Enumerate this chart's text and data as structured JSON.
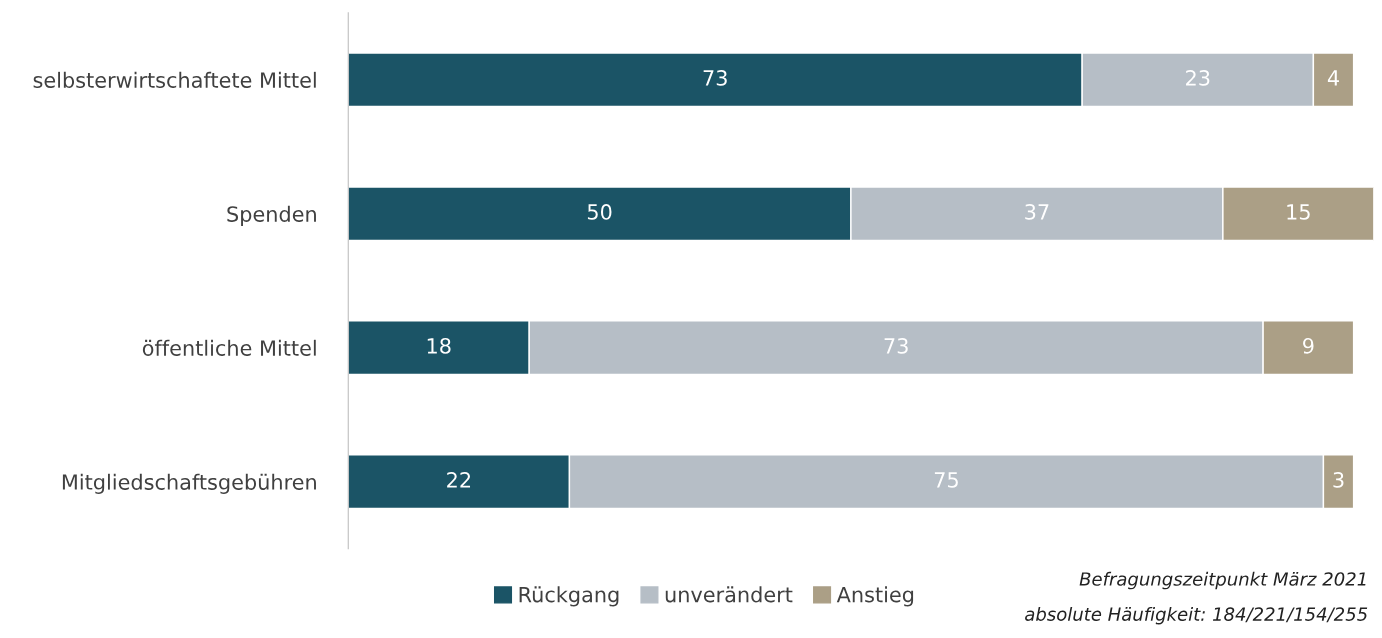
{
  "chart_data": {
    "type": "bar",
    "orientation": "horizontal",
    "stacked": true,
    "data_labels": true,
    "legend": "bottom",
    "grid": false,
    "categories": [
      "selbsterwirtschaftete Mittel",
      "Spenden",
      "öffentliche Mittel",
      "Mitgliedschaftsgebühren"
    ],
    "series": [
      {
        "name": "Rückgang",
        "color": "#1b5466",
        "values": [
          73,
          50,
          18,
          22
        ]
      },
      {
        "name": "unverändert",
        "color": "#b6bec6",
        "values": [
          23,
          37,
          73,
          75
        ]
      },
      {
        "name": "Anstieg",
        "color": "#ab9f86",
        "values": [
          4,
          15,
          9,
          3
        ]
      }
    ],
    "annotations": [
      "Befragungszeitpunkt März 2021",
      "absolute Häufigkeit: 184/221/154/255"
    ]
  }
}
